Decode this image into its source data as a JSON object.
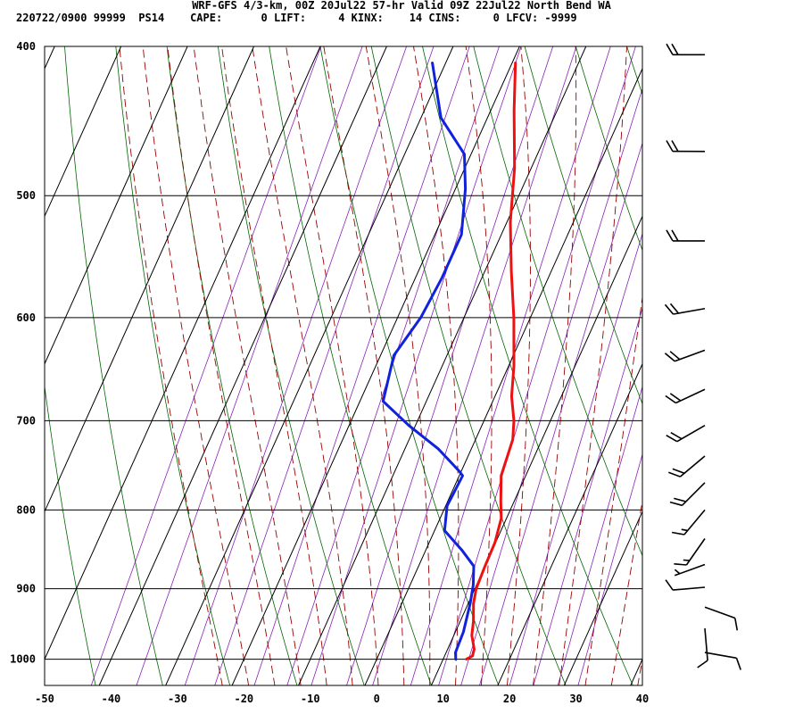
{
  "header": {
    "title": "WRF-GFS 4/3-km, 00Z 20Jul22 57-hr Valid 09Z 22Jul22 North Bend WA",
    "subtitle": "220722/0900 99999  PS14    CAPE:      0 LIFT:     4 KINX:    14 CINS:     0 LFCV: -9999"
  },
  "colors": {
    "temperature": "#ee1111",
    "dewpoint": "#1122dd",
    "isotherm_grid": "#000000",
    "dry_adiabat": "#006600",
    "moist_adiabat": "#990000",
    "mixing_ratio": "#8822bb",
    "wind_barb": "#000000"
  },
  "chart_data": {
    "type": "line",
    "chart_kind": "skew-T log-P sounding",
    "y_scale": "log",
    "y_axis_inverted": true,
    "ylim": [
      400,
      1040
    ],
    "xlim": [
      -50,
      40
    ],
    "grid": true,
    "y_ticks": [
      400,
      500,
      600,
      700,
      800,
      900,
      1000
    ],
    "x_ticks": [
      -50,
      -40,
      -30,
      -20,
      -10,
      0,
      10,
      20,
      30,
      40
    ],
    "series": [
      {
        "key": "temperature",
        "color": "#ee1111",
        "points": [
          {
            "p": 1000,
            "x": 13.5
          },
          {
            "p": 995,
            "x": 14.2
          },
          {
            "p": 985,
            "x": 14.0
          },
          {
            "p": 965,
            "x": 12.7
          },
          {
            "p": 945,
            "x": 12.0
          },
          {
            "p": 920,
            "x": 10.8
          },
          {
            "p": 900,
            "x": 10.2
          },
          {
            "p": 870,
            "x": 10.0
          },
          {
            "p": 840,
            "x": 9.9
          },
          {
            "p": 810,
            "x": 9.2
          },
          {
            "p": 790,
            "x": 8.0
          },
          {
            "p": 760,
            "x": 6.3
          },
          {
            "p": 720,
            "x": 5.6
          },
          {
            "p": 700,
            "x": 4.5
          },
          {
            "p": 675,
            "x": 2.5
          },
          {
            "p": 645,
            "x": 0.8
          },
          {
            "p": 600,
            "x": -2.5
          },
          {
            "p": 560,
            "x": -6.0
          },
          {
            "p": 520,
            "x": -9.5
          },
          {
            "p": 480,
            "x": -12.5
          },
          {
            "p": 440,
            "x": -16.5
          },
          {
            "p": 410,
            "x": -19.5
          }
        ]
      },
      {
        "key": "dewpoint",
        "color": "#1122dd",
        "points": [
          {
            "p": 1000,
            "x": 11.9
          },
          {
            "p": 990,
            "x": 11.4
          },
          {
            "p": 960,
            "x": 11.2
          },
          {
            "p": 920,
            "x": 10.3
          },
          {
            "p": 895,
            "x": 9.5
          },
          {
            "p": 870,
            "x": 8.3
          },
          {
            "p": 850,
            "x": 5.5
          },
          {
            "p": 825,
            "x": 1.5
          },
          {
            "p": 795,
            "x": 0.2
          },
          {
            "p": 785,
            "x": 0.3
          },
          {
            "p": 760,
            "x": 0.5
          },
          {
            "p": 755,
            "x": -0.3
          },
          {
            "p": 730,
            "x": -5.0
          },
          {
            "p": 705,
            "x": -11.0
          },
          {
            "p": 680,
            "x": -16.5
          },
          {
            "p": 635,
            "x": -18.0
          },
          {
            "p": 600,
            "x": -16.5
          },
          {
            "p": 565,
            "x": -16.0
          },
          {
            "p": 530,
            "x": -16.0
          },
          {
            "p": 495,
            "x": -18.5
          },
          {
            "p": 470,
            "x": -21.0
          },
          {
            "p": 445,
            "x": -27.0
          },
          {
            "p": 410,
            "x": -32.0
          }
        ]
      }
    ],
    "wind_barbs": [
      {
        "p": 405,
        "dir": 270,
        "speed": 20
      },
      {
        "p": 468,
        "dir": 270,
        "speed": 20
      },
      {
        "p": 535,
        "dir": 270,
        "speed": 20
      },
      {
        "p": 592,
        "dir": 260,
        "speed": 20
      },
      {
        "p": 630,
        "dir": 250,
        "speed": 20
      },
      {
        "p": 668,
        "dir": 245,
        "speed": 20
      },
      {
        "p": 705,
        "dir": 240,
        "speed": 20
      },
      {
        "p": 738,
        "dir": 230,
        "speed": 20
      },
      {
        "p": 768,
        "dir": 225,
        "speed": 20
      },
      {
        "p": 800,
        "dir": 220,
        "speed": 15
      },
      {
        "p": 835,
        "dir": 215,
        "speed": 15
      },
      {
        "p": 868,
        "dir": 250,
        "speed": 5
      },
      {
        "p": 898,
        "dir": 265,
        "speed": 10
      },
      {
        "p": 925,
        "dir": 110,
        "speed": 10
      },
      {
        "p": 955,
        "dir": 175,
        "speed": 10
      },
      {
        "p": 990,
        "dir": 100,
        "speed": 10
      }
    ]
  }
}
